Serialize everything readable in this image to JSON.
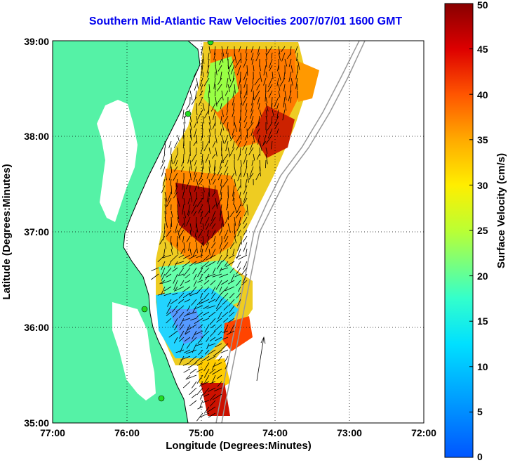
{
  "title": "Southern Mid-Atlantic Raw Velocities 2007/07/01 1600 GMT",
  "x_axis": {
    "label": "Longitude (Degrees:Minutes)",
    "ticks": [
      "77:00",
      "76:00",
      "75:00",
      "74:00",
      "73:00",
      "72:00"
    ]
  },
  "y_axis": {
    "label": "Latitude (Degrees:Minutes)",
    "ticks": [
      "39:00",
      "38:00",
      "37:00",
      "36:00",
      "35:00"
    ]
  },
  "colorbar": {
    "label": "Surface Velocity (cm/s)",
    "ticks": [
      "50",
      "45",
      "40",
      "35",
      "30",
      "25",
      "20",
      "15",
      "10",
      "5",
      "0"
    ],
    "range": [
      0,
      50
    ],
    "colormap": "jet"
  },
  "colors": {
    "land": "#55f2a6",
    "title": "#0000ee",
    "station": "#22dd22"
  },
  "map_extent": {
    "lon": [
      -77,
      -72
    ],
    "lat": [
      35,
      39
    ]
  },
  "grid": true
}
